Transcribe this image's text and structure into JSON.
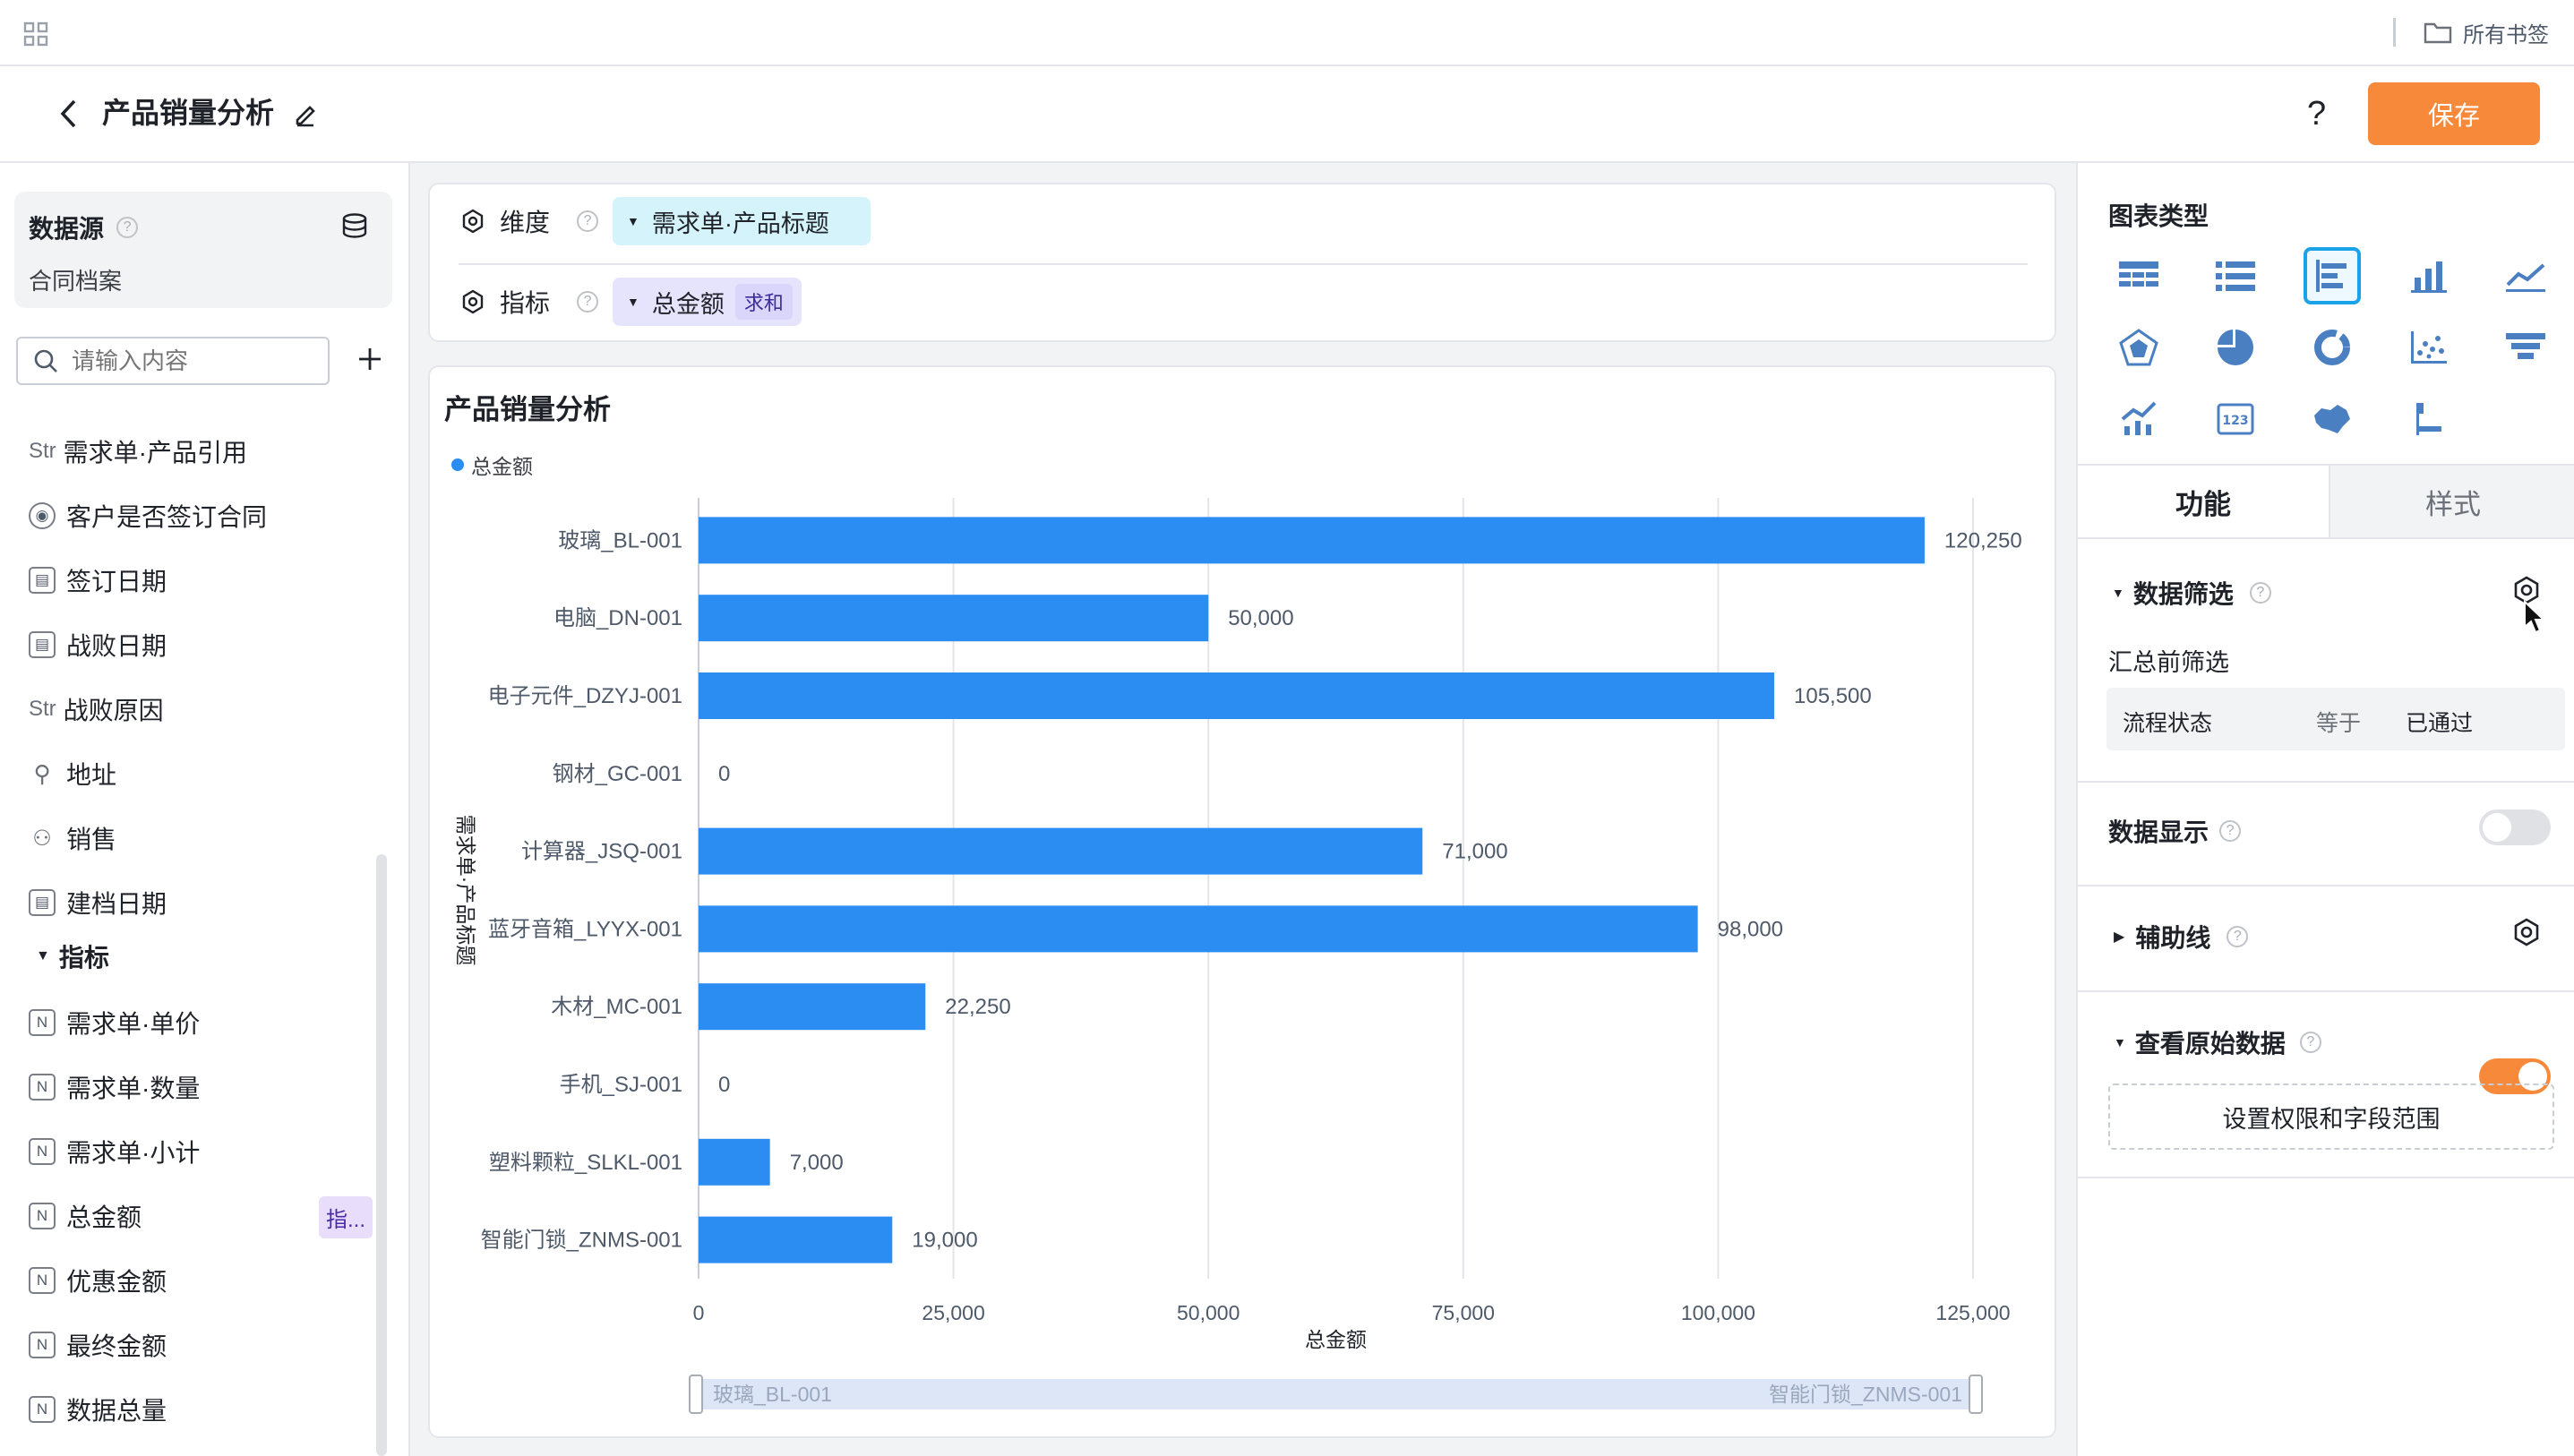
{
  "topbar": {
    "bookmark_label": "所有书签"
  },
  "header": {
    "title": "产品销量分析",
    "help": "?",
    "save_label": "保存"
  },
  "datasource": {
    "label": "数据源",
    "value": "合同档案"
  },
  "search": {
    "placeholder": "请输入内容"
  },
  "dimension_fields": [
    {
      "type": "Str",
      "label": "需求单·产品引用"
    },
    {
      "type": "radio",
      "label": "客户是否签订合同"
    },
    {
      "type": "date",
      "label": "签订日期"
    },
    {
      "type": "date",
      "label": "战败日期"
    },
    {
      "type": "Str",
      "label": "战败原因"
    },
    {
      "type": "location",
      "label": "地址"
    },
    {
      "type": "user",
      "label": "销售"
    },
    {
      "type": "date",
      "label": "建档日期"
    }
  ],
  "metrics_group": {
    "label": "指标"
  },
  "metric_fields": [
    {
      "label": "需求单·单价",
      "badge": ""
    },
    {
      "label": "需求单·数量",
      "badge": ""
    },
    {
      "label": "需求单·小计",
      "badge": ""
    },
    {
      "label": "总金额",
      "badge": "指..."
    },
    {
      "label": "优惠金额",
      "badge": ""
    },
    {
      "label": "最终金额",
      "badge": ""
    },
    {
      "label": "数据总量",
      "badge": ""
    }
  ],
  "config": {
    "dimension_label": "维度",
    "dimension_value": "需求单·产品标题",
    "metric_label": "指标",
    "metric_value": "总金额",
    "metric_agg": "求和"
  },
  "chart_data": {
    "type": "bar",
    "orientation": "horizontal",
    "title": "产品销量分析",
    "legend": [
      "总金额"
    ],
    "legend_position": "top-left",
    "categories": [
      "玻璃_BL-001",
      "电脑_DN-001",
      "电子元件_DZYJ-001",
      "钢材_GC-001",
      "计算器_JSQ-001",
      "蓝牙音箱_LYYX-001",
      "木材_MC-001",
      "手机_SJ-001",
      "塑料颗粒_SLKL-001",
      "智能门锁_ZNMS-001"
    ],
    "series": [
      {
        "name": "总金额",
        "values": [
          120250,
          50000,
          105500,
          0,
          71000,
          98000,
          22250,
          0,
          7000,
          19000
        ]
      }
    ],
    "value_labels": [
      "120,250",
      "50,000",
      "105,500",
      "0",
      "71,000",
      "98,000",
      "22,250",
      "0",
      "7,000",
      "19,000"
    ],
    "xlabel": "总金额",
    "ylabel": "需求单·产品标题",
    "xlim": [
      0,
      125000
    ],
    "xticks": [
      0,
      25000,
      50000,
      75000,
      100000,
      125000
    ],
    "xtick_labels": [
      "0",
      "25,000",
      "50,000",
      "75,000",
      "100,000",
      "125,000"
    ],
    "grid": true,
    "bar_color": "#2b8cf2",
    "slider_start": "玻璃_BL-001",
    "slider_end": "智能门锁_ZNMS-001"
  },
  "right_panel": {
    "chart_type_label": "图表类型",
    "tabs": [
      "功能",
      "样式"
    ],
    "data_filter_label": "数据筛选",
    "pre_filter_label": "汇总前筛选",
    "filter_row": {
      "field": "流程状态",
      "op": "等于",
      "value": "已通过"
    },
    "data_display_label": "数据显示",
    "aux_line_label": "辅助线",
    "raw_data_label": "查看原始数据",
    "permission_button": "设置权限和字段范围"
  },
  "colors": {
    "accent": "#f7893b",
    "bar": "#2b8cf2",
    "selected": "#1aa3e8"
  }
}
